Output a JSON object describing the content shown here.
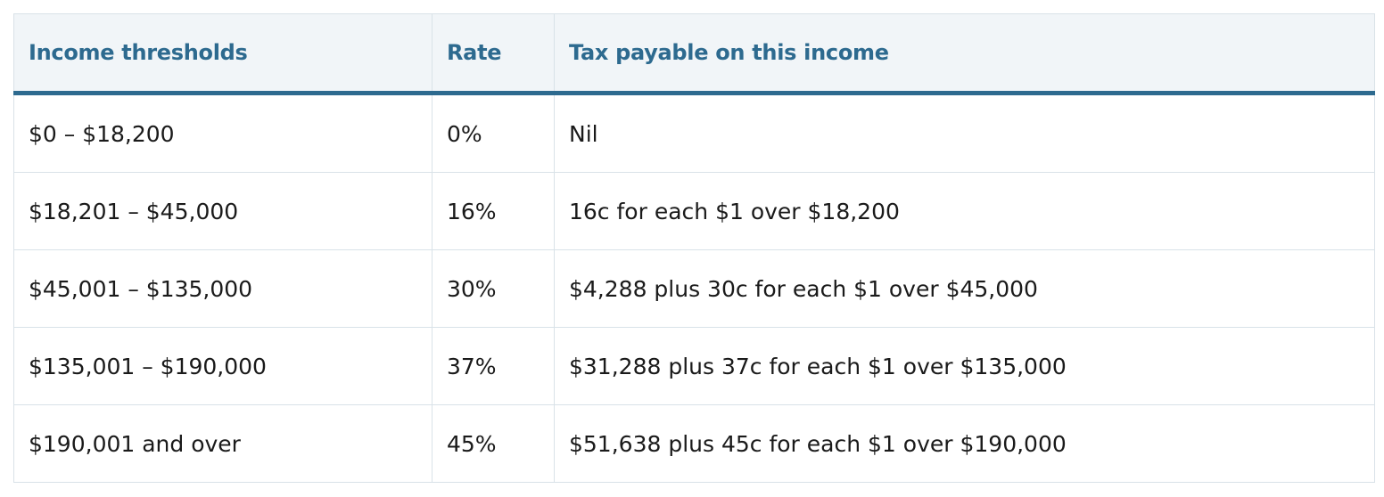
{
  "table": {
    "headers": [
      "Income thresholds",
      "Rate",
      "Tax payable on this income"
    ],
    "rows": [
      [
        "$0 – $18,200",
        "0%",
        "Nil"
      ],
      [
        "$18,201 – $45,000",
        "16%",
        "16c for each $1 over $18,200"
      ],
      [
        "$45,001 – $135,000",
        "30%",
        "$4,288 plus 30c for each $1 over $45,000"
      ],
      [
        "$135,001 – $190,000",
        "37%",
        "$31,288 plus 37c for each $1 over $135,000"
      ],
      [
        "$190,001 and over",
        "45%",
        "$51,638 plus 45c for each $1 over $190,000"
      ]
    ]
  },
  "colors": {
    "header_bg": "#f1f5f8",
    "header_text": "#2d6a8f",
    "accent_rule": "#2d6a8f",
    "grid": "#d9e2e8"
  }
}
